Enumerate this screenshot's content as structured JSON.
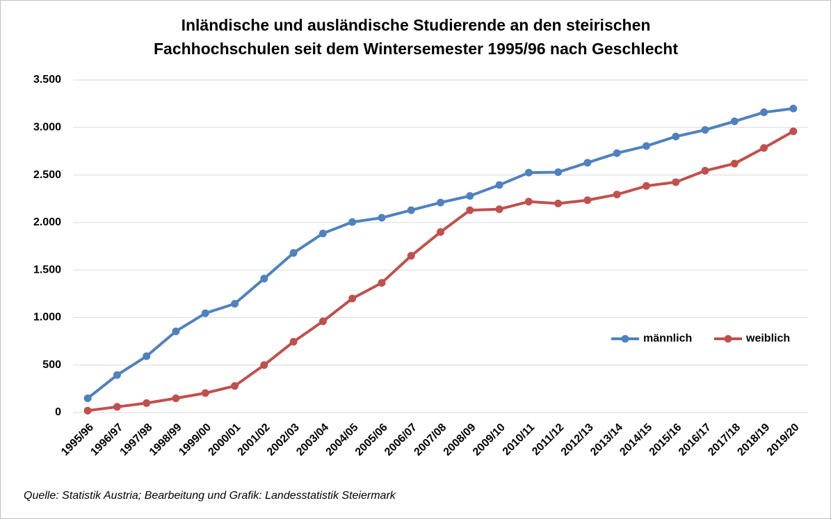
{
  "chart_data": {
    "type": "line",
    "title": [
      "Inländische und ausländische Studierende an den steirischen",
      "Fachhochschulen seit dem Wintersemester 1995/96 nach Geschlecht"
    ],
    "source": "Quelle: Statistik Austria; Bearbeitung und Grafik: Landesstatistik Steiermark",
    "categories": [
      "1995/96",
      "1996/97",
      "1997/98",
      "1998/99",
      "1999/00",
      "2000/01",
      "2001/02",
      "2002/03",
      "2003/04",
      "2004/05",
      "2005/06",
      "2006/07",
      "2007/08",
      "2008/09",
      "2009/10",
      "2010/11",
      "2011/12",
      "2012/13",
      "2013/14",
      "2014/15",
      "2015/16",
      "2016/17",
      "2017/18",
      "2018/19",
      "2019/20"
    ],
    "series": [
      {
        "name": "männlich",
        "color": "#4f81bd",
        "values": [
          150,
          395,
          593,
          855,
          1045,
          1145,
          1410,
          1680,
          1885,
          2005,
          2050,
          2130,
          2210,
          2280,
          2395,
          2525,
          2530,
          2630,
          2730,
          2805,
          2905,
          2975,
          3065,
          3160,
          3200
        ]
      },
      {
        "name": "weiblich",
        "color": "#c0504d",
        "values": [
          20,
          60,
          100,
          150,
          205,
          280,
          500,
          745,
          960,
          1200,
          1365,
          1650,
          1900,
          2130,
          2140,
          2220,
          2200,
          2235,
          2295,
          2385,
          2425,
          2545,
          2620,
          2785,
          2960
        ]
      }
    ],
    "ylim": [
      0,
      3500
    ],
    "yticks": [
      0,
      500,
      {
        "value": 1000,
        "label": "1.000"
      },
      {
        "value": 1500,
        "label": "1.500"
      },
      {
        "value": 2000,
        "label": "2.000"
      },
      {
        "value": 2500,
        "label": "2.500"
      },
      {
        "value": 3000,
        "label": "3.000"
      },
      {
        "value": 3500,
        "label": "3.500"
      }
    ],
    "grid": true,
    "legend": "right"
  }
}
